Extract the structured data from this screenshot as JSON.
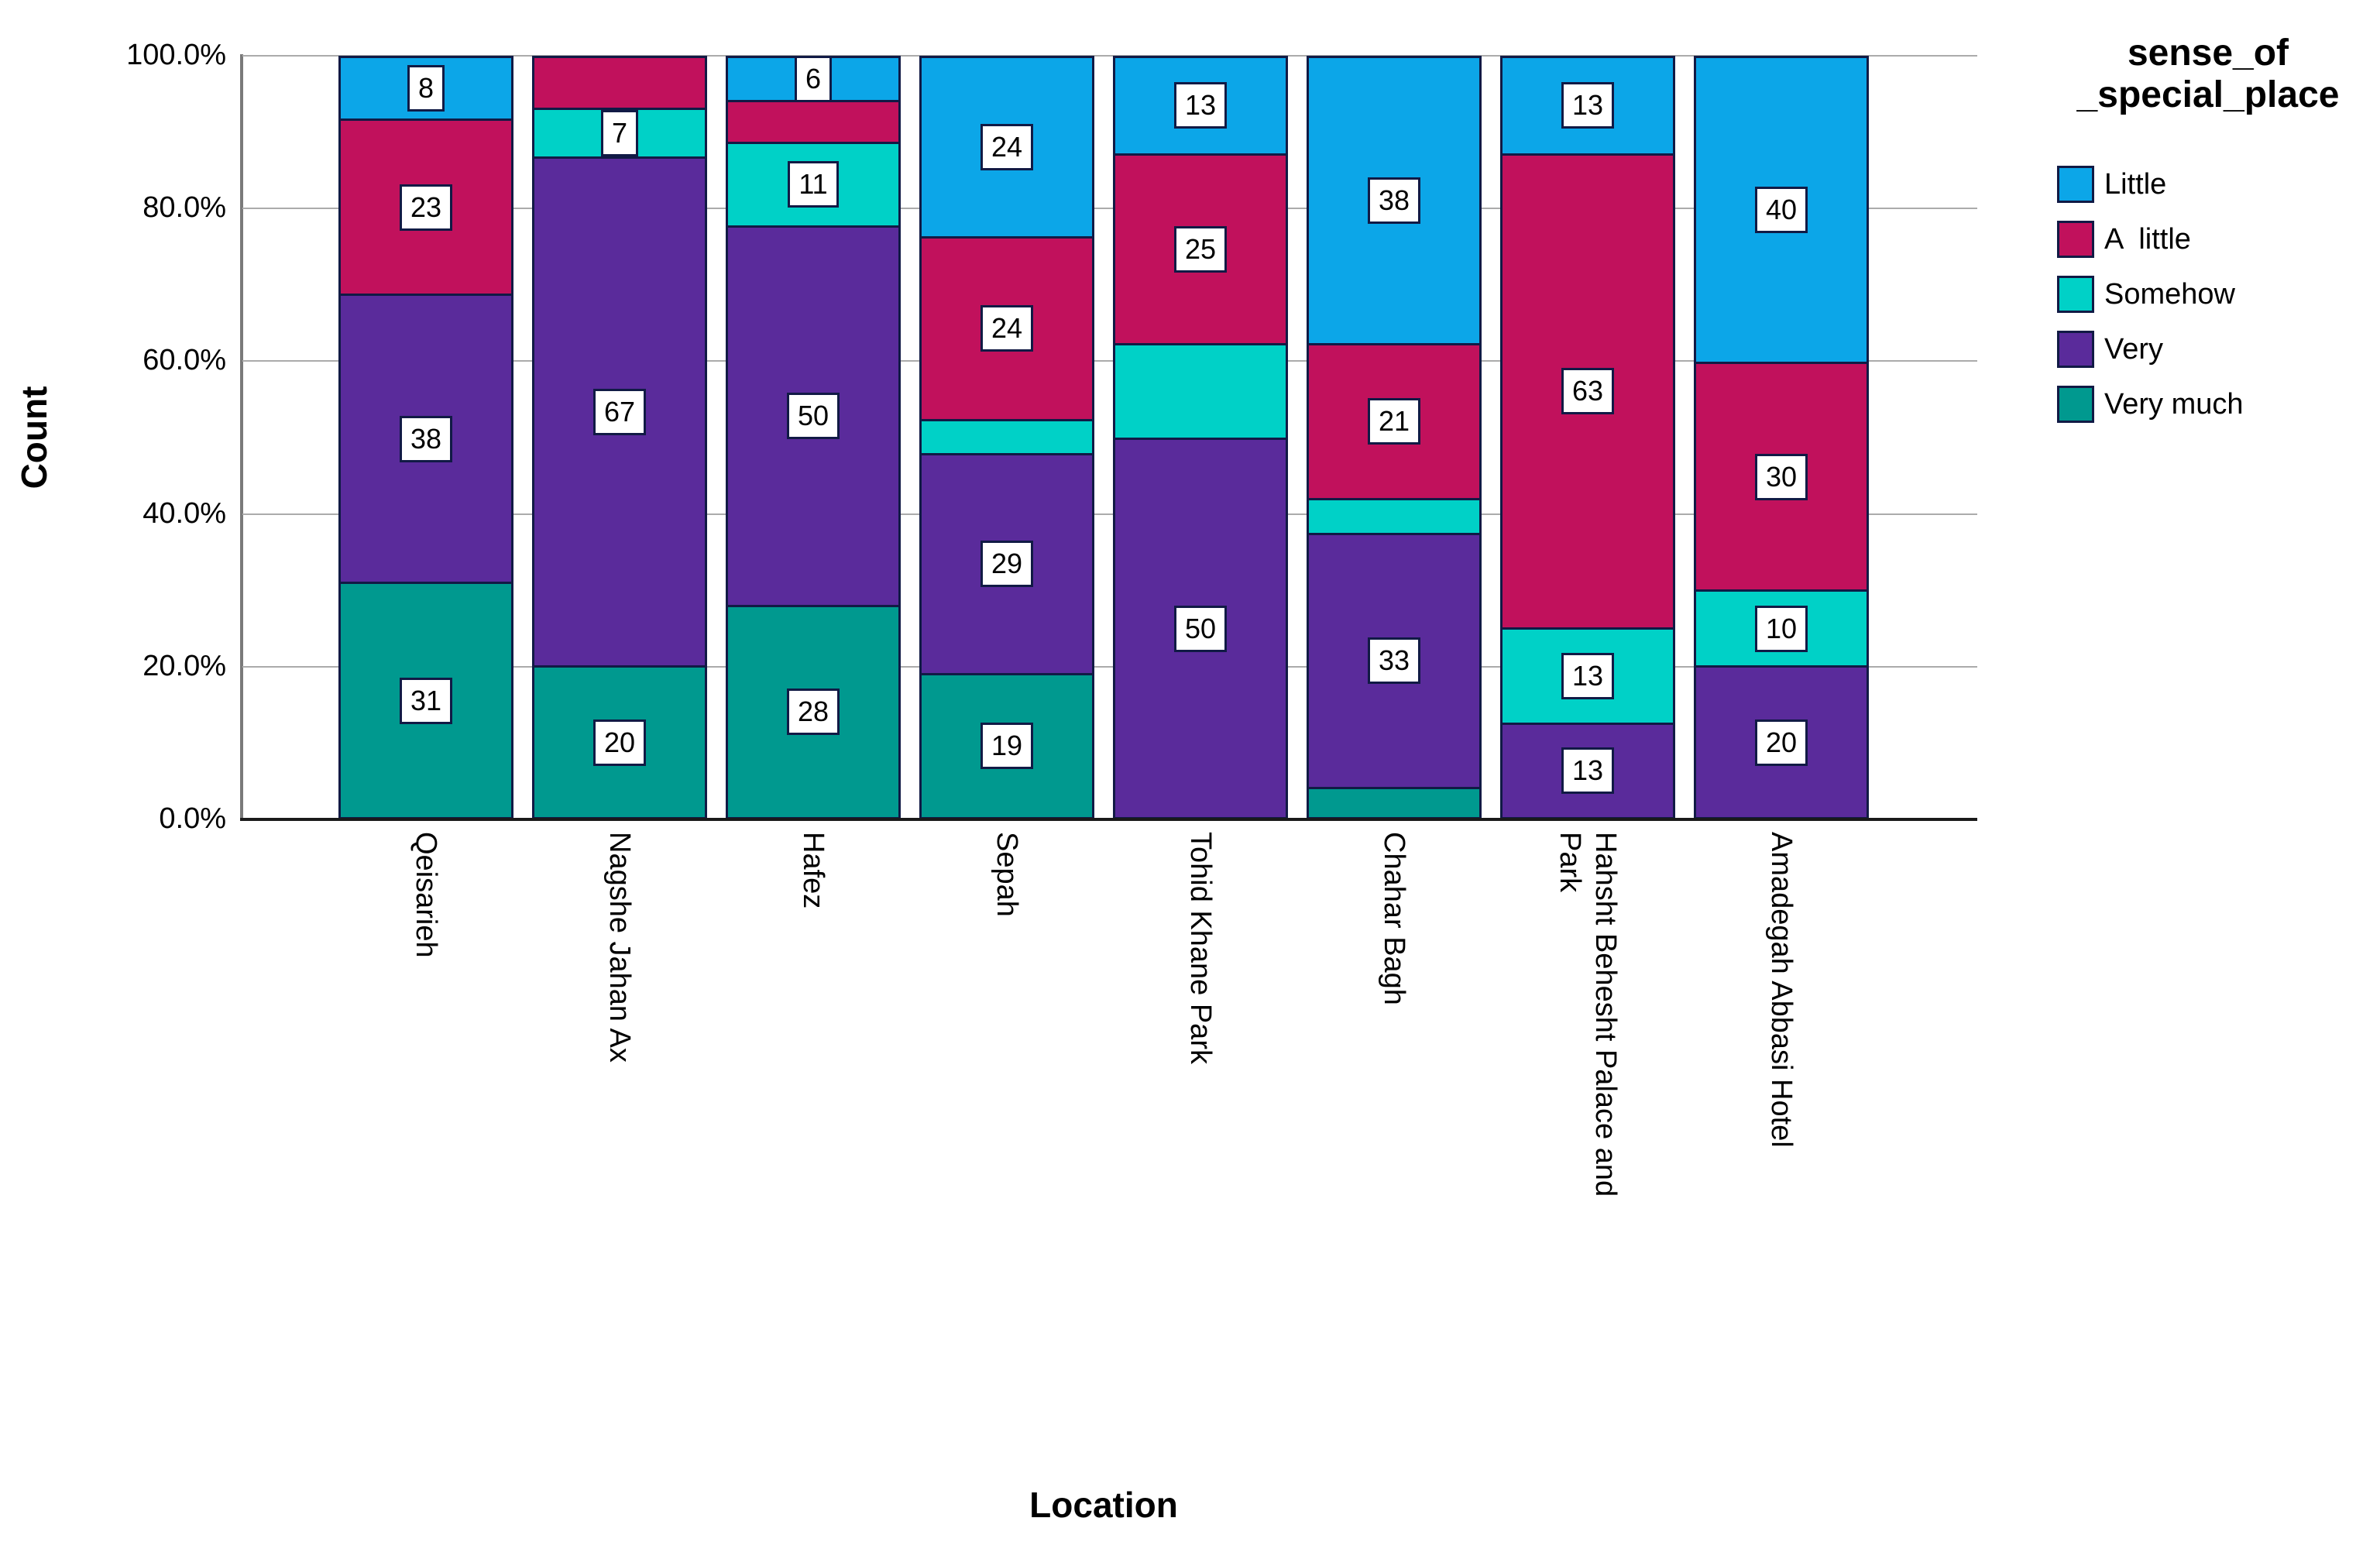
{
  "axes": {
    "x_title": "Location",
    "y_title": "Count"
  },
  "legend_title_lines": [
    "sense_of",
    "_special_place"
  ],
  "colors": {
    "background": "#FFFFFF",
    "grid": "#ABABAB",
    "axis_y": "#7A7A7A",
    "axis_x": "#1A1A1A",
    "segment_border": "#111A45",
    "label_box_bg": "#FFFFFF",
    "label_text": "#000000"
  },
  "chart_data": {
    "type": "bar",
    "stacked": "100_percent",
    "title": "",
    "xlabel": "Location",
    "ylabel": "Count",
    "ylim": [
      0,
      100
    ],
    "y_ticks": [
      "0.0%",
      "20.0%",
      "40.0%",
      "60.0%",
      "80.0%",
      "100.0%"
    ],
    "grid": "horizontal",
    "legend_position": "right",
    "legend_title": "sense_of\n_special_place",
    "legend": [
      {
        "key": "little",
        "label": "Little",
        "color": "#0CA6E8"
      },
      {
        "key": "a_little",
        "label": "A  little",
        "color": "#C1115C"
      },
      {
        "key": "somehow",
        "label": "Somehow",
        "color": "#00D1C7"
      },
      {
        "key": "very",
        "label": "Very",
        "color": "#5A2B9B"
      },
      {
        "key": "very_much",
        "label": "Very much",
        "color": "#00998F"
      }
    ],
    "categories": [
      "Qeisarieh",
      "Nagshe Jahan Ax",
      "Hafez",
      "Sepah",
      "Tohid Khane Park",
      "Chahar Bagh",
      "Hahsht Behesht Palace and\nPark",
      "Amadegah Abbasi Hotel"
    ],
    "bars": [
      {
        "category": "Qeisarieh",
        "segments": [
          {
            "key": "very_much",
            "label": "31",
            "pct": 31
          },
          {
            "key": "very",
            "label": "38",
            "pct": 38
          },
          {
            "key": "a_little",
            "label": "23",
            "pct": 23
          },
          {
            "key": "little",
            "label": "8",
            "pct": 8
          }
        ]
      },
      {
        "category": "Nagshe Jahan Ax",
        "segments": [
          {
            "key": "very_much",
            "label": "20",
            "pct": 20
          },
          {
            "key": "very",
            "label": "67",
            "pct": 67
          },
          {
            "key": "somehow",
            "label": "7",
            "pct": 6.5
          },
          {
            "key": "a_little",
            "label": "",
            "pct": 6.5
          }
        ]
      },
      {
        "category": "Hafez",
        "segments": [
          {
            "key": "very_much",
            "label": "28",
            "pct": 28
          },
          {
            "key": "very",
            "label": "50",
            "pct": 50
          },
          {
            "key": "somehow",
            "label": "11",
            "pct": 11
          },
          {
            "key": "a_little",
            "label": "",
            "pct": 5.5
          },
          {
            "key": "little",
            "label": "6",
            "pct": 5.5
          }
        ]
      },
      {
        "category": "Sepah",
        "segments": [
          {
            "key": "very_much",
            "label": "19",
            "pct": 19
          },
          {
            "key": "very",
            "label": "29",
            "pct": 29
          },
          {
            "key": "somehow",
            "label": "",
            "pct": 4.5
          },
          {
            "key": "a_little",
            "label": "24",
            "pct": 24
          },
          {
            "key": "little",
            "label": "24",
            "pct": 23.5
          }
        ]
      },
      {
        "category": "Tohid Khane Park",
        "segments": [
          {
            "key": "very",
            "label": "50",
            "pct": 50
          },
          {
            "key": "somehow",
            "label": "",
            "pct": 12.5
          },
          {
            "key": "a_little",
            "label": "25",
            "pct": 25
          },
          {
            "key": "little",
            "label": "13",
            "pct": 12.5
          }
        ]
      },
      {
        "category": "Chahar Bagh",
        "segments": [
          {
            "key": "very_much",
            "label": "",
            "pct": 4
          },
          {
            "key": "very",
            "label": "33",
            "pct": 33.5
          },
          {
            "key": "somehow",
            "label": "",
            "pct": 4.5
          },
          {
            "key": "a_little",
            "label": "21",
            "pct": 20.5
          },
          {
            "key": "little",
            "label": "38",
            "pct": 37.5
          }
        ]
      },
      {
        "category": "Hahsht Behesht Palace and\nPark",
        "segments": [
          {
            "key": "very",
            "label": "13",
            "pct": 12.5
          },
          {
            "key": "somehow",
            "label": "13",
            "pct": 12.5
          },
          {
            "key": "a_little",
            "label": "63",
            "pct": 62.5
          },
          {
            "key": "little",
            "label": "13",
            "pct": 12.5
          }
        ]
      },
      {
        "category": "Amadegah Abbasi Hotel",
        "segments": [
          {
            "key": "very",
            "label": "20",
            "pct": 20
          },
          {
            "key": "somehow",
            "label": "10",
            "pct": 10
          },
          {
            "key": "a_little",
            "label": "30",
            "pct": 30
          },
          {
            "key": "little",
            "label": "40",
            "pct": 40
          }
        ]
      }
    ]
  }
}
